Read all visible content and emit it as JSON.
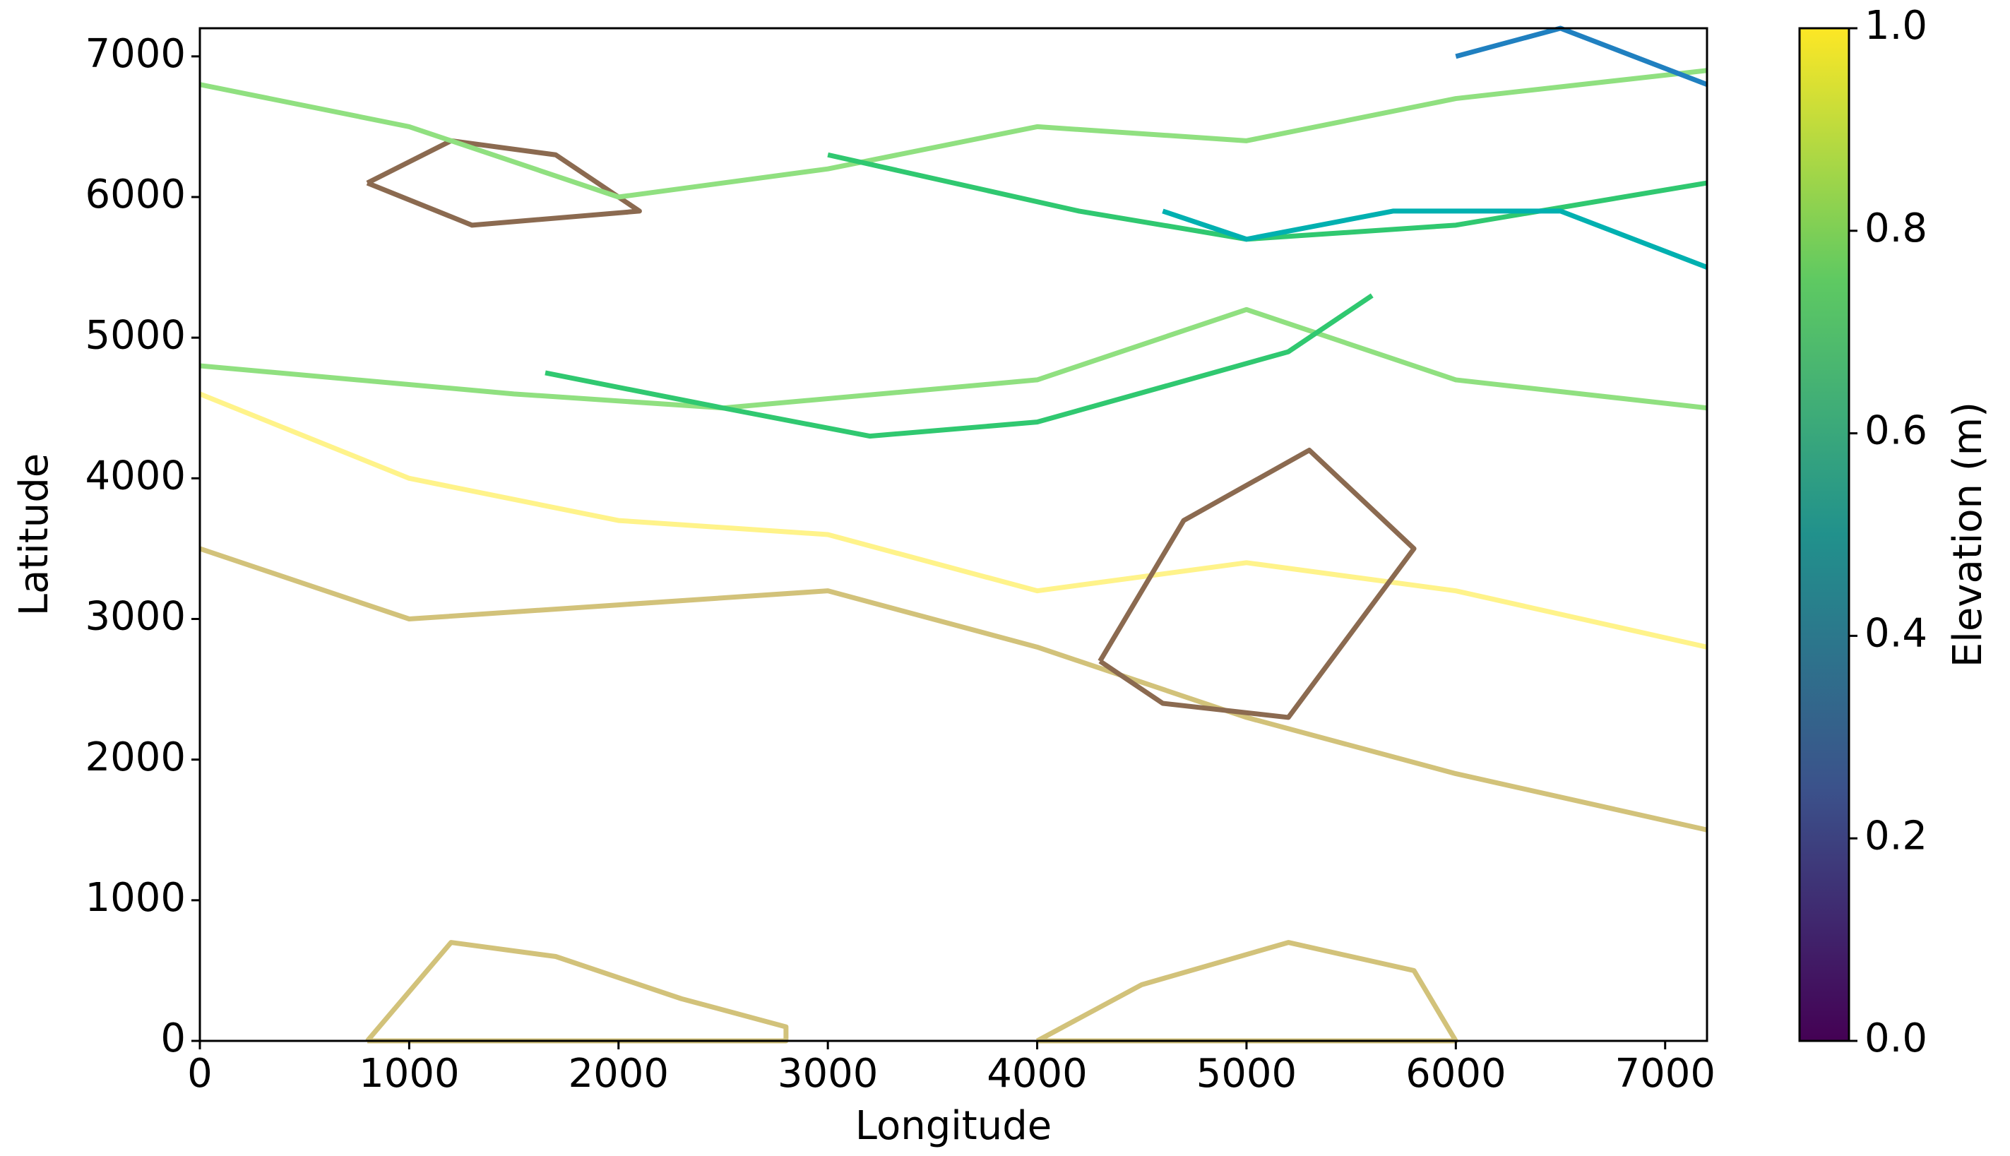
{
  "chart_data": {
    "type": "contour",
    "xlabel": "Longitude",
    "ylabel": "Latitude",
    "xlim": [
      0,
      7200
    ],
    "ylim": [
      0,
      7200
    ],
    "xticks": [
      0,
      1000,
      2000,
      3000,
      4000,
      5000,
      6000,
      7000
    ],
    "yticks": [
      0,
      1000,
      2000,
      3000,
      4000,
      5000,
      6000,
      7000
    ],
    "contours": [
      {
        "color": "#d2c27a",
        "x": [
          0,
          1000,
          2000,
          3000,
          4000,
          5000,
          6000,
          7200
        ],
        "y": [
          3500,
          3000,
          3100,
          3200,
          2800,
          2300,
          1900,
          1500
        ]
      },
      {
        "color": "#d2c27a",
        "x": [
          800,
          1200,
          1700,
          2300,
          2800,
          2800,
          800
        ],
        "y": [
          0,
          700,
          600,
          300,
          100,
          0,
          0
        ]
      },
      {
        "color": "#d2c27a",
        "x": [
          4000,
          4500,
          5200,
          5800,
          6000,
          4000
        ],
        "y": [
          0,
          400,
          700,
          500,
          0,
          0
        ]
      },
      {
        "color": "#fff38a",
        "x": [
          0,
          1000,
          2000,
          3000,
          4000,
          5000,
          6000,
          7200
        ],
        "y": [
          4600,
          4000,
          3700,
          3600,
          3200,
          3400,
          3200,
          2800
        ]
      },
      {
        "color": "#8b6a50",
        "x": [
          4300,
          4700,
          5300,
          5800,
          5200,
          4600,
          4300
        ],
        "y": [
          2700,
          3700,
          4200,
          3500,
          2300,
          2400,
          2700
        ]
      },
      {
        "color": "#8b6a50",
        "x": [
          800,
          1200,
          1700,
          2100,
          1300,
          800
        ],
        "y": [
          6100,
          6400,
          6300,
          5900,
          5800,
          6100
        ]
      },
      {
        "color": "#90e080",
        "x": [
          0,
          1000,
          2000,
          3000,
          4000,
          5000,
          6000,
          7200
        ],
        "y": [
          6800,
          6500,
          6000,
          6200,
          6500,
          6400,
          6700,
          6900
        ]
      },
      {
        "color": "#90e080",
        "x": [
          0,
          1500,
          2500,
          4000,
          5000,
          6000,
          7200
        ],
        "y": [
          4800,
          4600,
          4500,
          4700,
          5200,
          4700,
          4500
        ]
      },
      {
        "color": "#30c870",
        "x": [
          1650,
          2500,
          3200,
          4000,
          5200,
          5600
        ],
        "y": [
          4750,
          4500,
          4300,
          4400,
          4900,
          5300
        ]
      },
      {
        "color": "#30c870",
        "x": [
          3000,
          4200,
          5000,
          6000,
          7200
        ],
        "y": [
          6300,
          5900,
          5700,
          5800,
          6100
        ]
      },
      {
        "color": "#00b0b0",
        "x": [
          4600,
          5000,
          5700,
          6500,
          7200
        ],
        "y": [
          5900,
          5700,
          5900,
          5900,
          5500
        ]
      },
      {
        "color": "#2080c0",
        "x": [
          6000,
          6500,
          7200
        ],
        "y": [
          7000,
          7200,
          6800
        ]
      }
    ],
    "colorbar": {
      "label": "Elevation (m)",
      "lim": [
        0,
        1
      ],
      "colors": [
        "#440154",
        "#3b528b",
        "#21918c",
        "#5ec962",
        "#fde725"
      ],
      "ticks": [
        {
          "value": 0,
          "label": "0.0"
        },
        0.2,
        0.4,
        0.6,
        0.8,
        {
          "value": 1,
          "label": "1.0"
        }
      ]
    }
  }
}
